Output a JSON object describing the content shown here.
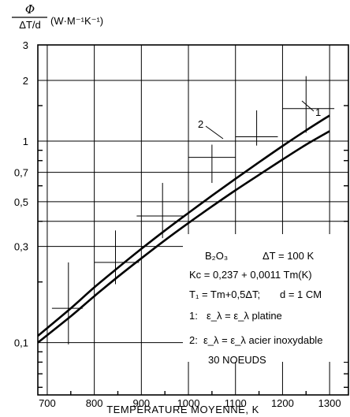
{
  "chart_data": {
    "type": "line",
    "scale": {
      "x": "linear",
      "y": "log"
    },
    "xlim": [
      680,
      1340
    ],
    "ylim": [
      0.055,
      3
    ],
    "x_ticks": [
      700,
      800,
      900,
      1000,
      1100,
      1200,
      1300
    ],
    "x_tick_labels": [
      "700",
      "800",
      "900",
      "1000",
      "1100",
      "1200",
      "1300"
    ],
    "y_ticks": [
      0.1,
      0.3,
      0.5,
      0.7,
      1,
      2,
      3
    ],
    "y_tick_labels": [
      "0,1",
      "0,3",
      "0,5",
      "0,7",
      "1",
      "2",
      "3"
    ],
    "grid": true,
    "xlabel": "TEMPERATURE   MOYENNE,    K",
    "ylabel": {
      "numerator": "Φ",
      "denominator": "ΔT/d",
      "unit": "(W·M⁻¹K⁻¹)"
    },
    "series": [
      {
        "name": "1",
        "x": [
          680,
          750,
          800,
          850,
          900,
          950,
          1000,
          1050,
          1100,
          1150,
          1200,
          1250,
          1300
        ],
        "values": [
          0.1,
          0.135,
          0.17,
          0.212,
          0.262,
          0.322,
          0.392,
          0.474,
          0.57,
          0.68,
          0.81,
          0.96,
          1.12
        ]
      },
      {
        "name": "2",
        "x": [
          680,
          750,
          800,
          850,
          900,
          950,
          1000,
          1050,
          1100,
          1150,
          1200,
          1250,
          1300
        ],
        "values": [
          0.108,
          0.148,
          0.188,
          0.235,
          0.292,
          0.36,
          0.44,
          0.536,
          0.65,
          0.785,
          0.945,
          1.13,
          1.34
        ]
      }
    ],
    "error_bars": [
      {
        "x": 745,
        "y": 0.148,
        "x_err": [
          710,
          775
        ],
        "y_err": [
          0.098,
          0.25
        ]
      },
      {
        "x": 845,
        "y": 0.25,
        "x_err": [
          800,
          895
        ],
        "y_err": [
          0.195,
          0.36
        ]
      },
      {
        "x": 945,
        "y": 0.425,
        "x_err": [
          890,
          990
        ],
        "y_err": [
          0.33,
          0.62
        ]
      },
      {
        "x": 1050,
        "y": 0.83,
        "x_err": [
          1000,
          1100
        ],
        "y_err": [
          0.62,
          0.96
        ]
      },
      {
        "x": 1145,
        "y": 1.05,
        "x_err": [
          1100,
          1190
        ],
        "y_err": [
          0.95,
          1.42
        ]
      },
      {
        "x": 1250,
        "y": 1.45,
        "x_err": [
          1200,
          1310
        ],
        "y_err": [
          1.1,
          2.1
        ]
      }
    ],
    "annotations": {
      "curve_label_1": "1",
      "curve_label_2": "2",
      "legend_lines": {
        "material": "B₂O₃",
        "delta_t": "ΔT = 100 K",
        "kc": "Kc = 0,237 + 0,0011 Tm(K)",
        "t1": "T₁ = Tm+0,5ΔT;",
        "d": "d = 1 CM",
        "item1_num": "1:",
        "item1": "ε_λ = ε_λ platine",
        "item2_num": "2:",
        "item2": "ε_λ = ε_λ acier inoxydable",
        "nodes": "30 NOEUDS"
      }
    }
  }
}
